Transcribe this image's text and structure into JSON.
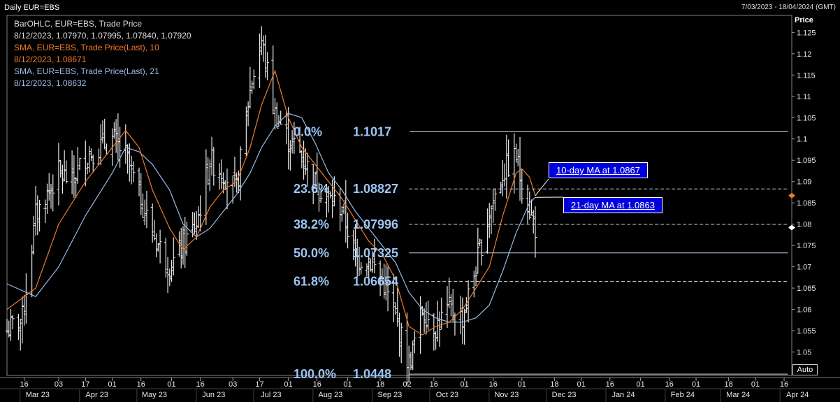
{
  "header": {
    "title": "Daily EUR=EBS",
    "date_range": "7/03/2023 - 18/04/2024 (GMT)"
  },
  "legend": {
    "bar_title": "BarOHLC, EUR=EBS, Trade Price",
    "bar_values": "8/12/2023, 1.07970, 1.07995, 1.07840, 1.07920",
    "sma10_title": "SMA, EUR=EBS, Trade Price(Last),   10",
    "sma10_value": "8/12/2023, 1.08671",
    "sma21_title": "SMA, EUR=EBS, Trade Price(Last),   21",
    "sma21_value": "8/12/2023, 1.08632"
  },
  "axis": {
    "price_label": "Price",
    "auto_label": "Auto"
  },
  "annotations": {
    "ma10_callout": "10-day MA at 1.0867",
    "ma21_callout": "21-day MA at 1.0863"
  },
  "colors": {
    "background": "#000000",
    "bars": "#e8e8e8",
    "sma10": "#f07a2a",
    "sma21": "#9cbbe6",
    "fib_text": "#9cc5f5",
    "callout_bg": "#0000dd"
  },
  "chart_data": {
    "type": "ohlc",
    "title": "Daily EUR=EBS",
    "ylabel": "Price",
    "ylim": [
      1.0445,
      1.129
    ],
    "y_ticks": [
      1.05,
      1.055,
      1.06,
      1.065,
      1.07,
      1.075,
      1.08,
      1.085,
      1.09,
      1.095,
      1.1,
      1.105,
      1.11,
      1.115,
      1.12,
      1.125
    ],
    "x_ticks": [
      {
        "date": "2023-03-16",
        "label": "16"
      },
      {
        "date": "2023-04-03",
        "label": "03"
      },
      {
        "date": "2023-04-17",
        "label": "17"
      },
      {
        "date": "2023-05-01",
        "label": "01"
      },
      {
        "date": "2023-05-16",
        "label": "16"
      },
      {
        "date": "2023-06-01",
        "label": "01"
      },
      {
        "date": "2023-06-16",
        "label": "16"
      },
      {
        "date": "2023-07-03",
        "label": "03"
      },
      {
        "date": "2023-07-17",
        "label": "17"
      },
      {
        "date": "2023-08-01",
        "label": "01"
      },
      {
        "date": "2023-08-16",
        "label": "16"
      },
      {
        "date": "2023-09-01",
        "label": "01"
      },
      {
        "date": "2023-09-18",
        "label": "18"
      },
      {
        "date": "2023-10-02",
        "label": "02"
      },
      {
        "date": "2023-10-16",
        "label": "16"
      },
      {
        "date": "2023-11-01",
        "label": "01"
      },
      {
        "date": "2023-11-16",
        "label": "16"
      },
      {
        "date": "2023-12-01",
        "label": "01"
      },
      {
        "date": "2023-12-18",
        "label": "18"
      },
      {
        "date": "2024-01-01",
        "label": "01"
      },
      {
        "date": "2024-01-16",
        "label": "16"
      },
      {
        "date": "2024-02-01",
        "label": "01"
      },
      {
        "date": "2024-02-16",
        "label": "16"
      },
      {
        "date": "2024-03-01",
        "label": "01"
      },
      {
        "date": "2024-03-18",
        "label": "18"
      },
      {
        "date": "2024-04-01",
        "label": "01"
      },
      {
        "date": "2024-04-16",
        "label": "16"
      }
    ],
    "month_labels": [
      {
        "date": "2023-03-23",
        "label": "Mar 23"
      },
      {
        "date": "2023-04-23",
        "label": "Apr 23"
      },
      {
        "date": "2023-05-23",
        "label": "May 23"
      },
      {
        "date": "2023-06-23",
        "label": "Jun 23"
      },
      {
        "date": "2023-07-23",
        "label": "Jul 23"
      },
      {
        "date": "2023-08-23",
        "label": "Aug 23"
      },
      {
        "date": "2023-09-23",
        "label": "Sep 23"
      },
      {
        "date": "2023-10-23",
        "label": "Oct 23"
      },
      {
        "date": "2023-11-23",
        "label": "Nov 23"
      },
      {
        "date": "2023-12-23",
        "label": "Dec 23"
      },
      {
        "date": "2024-01-23",
        "label": "Jan 24"
      },
      {
        "date": "2024-02-23",
        "label": "Feb 24"
      },
      {
        "date": "2024-03-23",
        "label": "Mar 24"
      },
      {
        "date": "2024-04-23",
        "label": "Apr 24"
      }
    ],
    "close_series": [
      [
        "2023-03-07",
        1.055
      ],
      [
        "2023-03-15",
        1.058
      ],
      [
        "2023-03-22",
        1.082
      ],
      [
        "2023-04-03",
        1.092
      ],
      [
        "2023-04-10",
        1.09
      ],
      [
        "2023-04-17",
        1.096
      ],
      [
        "2023-04-24",
        1.098
      ],
      [
        "2023-05-01",
        1.1
      ],
      [
        "2023-05-08",
        1.096
      ],
      [
        "2023-05-15",
        1.087
      ],
      [
        "2023-05-22",
        1.078
      ],
      [
        "2023-05-31",
        1.07
      ],
      [
        "2023-06-07",
        1.075
      ],
      [
        "2023-06-14",
        1.08
      ],
      [
        "2023-06-21",
        1.095
      ],
      [
        "2023-06-28",
        1.092
      ],
      [
        "2023-07-05",
        1.088
      ],
      [
        "2023-07-12",
        1.112
      ],
      [
        "2023-07-18",
        1.123
      ],
      [
        "2023-07-25",
        1.106
      ],
      [
        "2023-08-01",
        1.1
      ],
      [
        "2023-08-08",
        1.096
      ],
      [
        "2023-08-15",
        1.09
      ],
      [
        "2023-08-22",
        1.086
      ],
      [
        "2023-08-29",
        1.084
      ],
      [
        "2023-09-05",
        1.072
      ],
      [
        "2023-09-12",
        1.072
      ],
      [
        "2023-09-19",
        1.067
      ],
      [
        "2023-09-26",
        1.058
      ],
      [
        "2023-10-03",
        1.047
      ],
      [
        "2023-10-10",
        1.06
      ],
      [
        "2023-10-17",
        1.056
      ],
      [
        "2023-10-24",
        1.06
      ],
      [
        "2023-10-31",
        1.058
      ],
      [
        "2023-11-07",
        1.07
      ],
      [
        "2023-11-14",
        1.083
      ],
      [
        "2023-11-21",
        1.092
      ],
      [
        "2023-11-28",
        1.096
      ],
      [
        "2023-12-01",
        1.089
      ],
      [
        "2023-12-08",
        1.0792
      ]
    ],
    "sma10": [
      [
        "2023-03-07",
        1.06
      ],
      [
        "2023-03-22",
        1.065
      ],
      [
        "2023-04-03",
        1.08
      ],
      [
        "2023-04-17",
        1.09
      ],
      [
        "2023-05-01",
        1.098
      ],
      [
        "2023-05-08",
        1.102
      ],
      [
        "2023-05-15",
        1.098
      ],
      [
        "2023-05-22",
        1.088
      ],
      [
        "2023-05-31",
        1.079
      ],
      [
        "2023-06-07",
        1.074
      ],
      [
        "2023-06-14",
        1.077
      ],
      [
        "2023-06-21",
        1.084
      ],
      [
        "2023-06-28",
        1.088
      ],
      [
        "2023-07-05",
        1.09
      ],
      [
        "2023-07-12",
        1.098
      ],
      [
        "2023-07-18",
        1.108
      ],
      [
        "2023-07-25",
        1.116
      ],
      [
        "2023-08-01",
        1.105
      ],
      [
        "2023-08-08",
        1.098
      ],
      [
        "2023-08-15",
        1.094
      ],
      [
        "2023-08-22",
        1.09
      ],
      [
        "2023-08-29",
        1.086
      ],
      [
        "2023-09-05",
        1.081
      ],
      [
        "2023-09-12",
        1.076
      ],
      [
        "2023-09-19",
        1.073
      ],
      [
        "2023-09-26",
        1.067
      ],
      [
        "2023-10-03",
        1.056
      ],
      [
        "2023-10-10",
        1.054
      ],
      [
        "2023-10-17",
        1.056
      ],
      [
        "2023-10-24",
        1.057
      ],
      [
        "2023-10-31",
        1.06
      ],
      [
        "2023-11-07",
        1.065
      ],
      [
        "2023-11-14",
        1.07
      ],
      [
        "2023-11-21",
        1.082
      ],
      [
        "2023-11-28",
        1.092
      ],
      [
        "2023-12-01",
        1.093
      ],
      [
        "2023-12-05",
        1.091
      ],
      [
        "2023-12-08",
        1.0867
      ]
    ],
    "sma21": [
      [
        "2023-03-07",
        1.066
      ],
      [
        "2023-03-22",
        1.063
      ],
      [
        "2023-04-03",
        1.07
      ],
      [
        "2023-04-17",
        1.082
      ],
      [
        "2023-05-01",
        1.092
      ],
      [
        "2023-05-08",
        1.098
      ],
      [
        "2023-05-15",
        1.097
      ],
      [
        "2023-05-22",
        1.094
      ],
      [
        "2023-05-31",
        1.088
      ],
      [
        "2023-06-07",
        1.08
      ],
      [
        "2023-06-14",
        1.077
      ],
      [
        "2023-06-21",
        1.079
      ],
      [
        "2023-06-28",
        1.083
      ],
      [
        "2023-07-05",
        1.087
      ],
      [
        "2023-07-12",
        1.092
      ],
      [
        "2023-07-18",
        1.098
      ],
      [
        "2023-07-25",
        1.103
      ],
      [
        "2023-08-01",
        1.106
      ],
      [
        "2023-08-08",
        1.105
      ],
      [
        "2023-08-15",
        1.099
      ],
      [
        "2023-08-22",
        1.092
      ],
      [
        "2023-08-29",
        1.088
      ],
      [
        "2023-09-05",
        1.083
      ],
      [
        "2023-09-12",
        1.079
      ],
      [
        "2023-09-19",
        1.075
      ],
      [
        "2023-09-26",
        1.071
      ],
      [
        "2023-10-03",
        1.064
      ],
      [
        "2023-10-10",
        1.06
      ],
      [
        "2023-10-17",
        1.058
      ],
      [
        "2023-10-24",
        1.057
      ],
      [
        "2023-10-31",
        1.057
      ],
      [
        "2023-11-07",
        1.058
      ],
      [
        "2023-11-14",
        1.061
      ],
      [
        "2023-11-21",
        1.069
      ],
      [
        "2023-11-28",
        1.078
      ],
      [
        "2023-12-05",
        1.085
      ],
      [
        "2023-12-08",
        1.0863
      ]
    ],
    "fibonacci": {
      "start_date": "2023-10-03",
      "end_date": "2024-04-18",
      "levels": [
        {
          "pct": "0.0%",
          "value": "1.1017",
          "price": 1.1017,
          "style": "solid"
        },
        {
          "pct": "23.6%",
          "value": "1.08827",
          "price": 1.08827,
          "style": "dashed"
        },
        {
          "pct": "38.2%",
          "value": "1.07996",
          "price": 1.07996,
          "style": "dashed"
        },
        {
          "pct": "50.0%",
          "value": "1.07325",
          "price": 1.07325,
          "style": "solid"
        },
        {
          "pct": "61.8%",
          "value": "1.06654",
          "price": 1.06654,
          "style": "dashed"
        },
        {
          "pct": "100.0%",
          "value": "1.0448",
          "price": 1.0448,
          "style": "solid"
        }
      ]
    },
    "markers": [
      {
        "price": 1.0867,
        "color": "#f07a2a"
      },
      {
        "price": 1.0792,
        "color": "#ffffff"
      }
    ]
  }
}
